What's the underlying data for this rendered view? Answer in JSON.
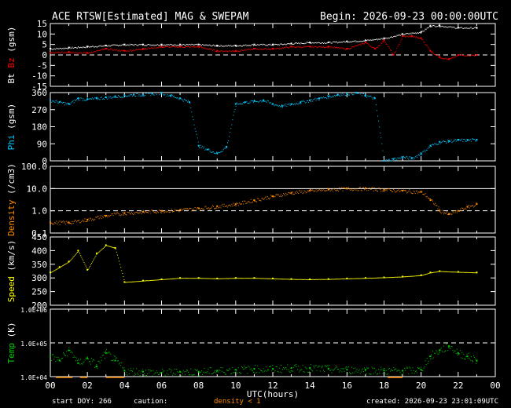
{
  "header": {
    "title": "ACE RTSW[Estimated] MAG & SWEPAM",
    "begin": "Begin: 2026-09-23 00:00:00UTC"
  },
  "footer": {
    "start_doy": "start DOY: 266",
    "caution_label": "caution:",
    "caution_note": "density < 1",
    "created": "created: 2026-09-23 23:01:09UTC"
  },
  "colors": {
    "background": "#000000",
    "bt": "#ffffff",
    "bz": "#ff0000",
    "phi": "#00c8ff",
    "density": "#ff8c00",
    "speed": "#ffff00",
    "temp": "#00c800"
  },
  "chart_data": [
    {
      "type": "scatter",
      "panel": "mag",
      "ylabel_parts": [
        "Bt",
        "Bz",
        "(gsm)"
      ],
      "yticks": [
        "15",
        "10",
        "5",
        "0",
        "-5",
        "-10",
        "-15"
      ],
      "ylim": [
        -15,
        15
      ],
      "dashed_at": 0,
      "series": [
        {
          "name": "Bt",
          "x": [
            0,
            1,
            2,
            3,
            4,
            5,
            6,
            7,
            8,
            9,
            10,
            11,
            12,
            13,
            14,
            15,
            16,
            17,
            18,
            19,
            20,
            20.5,
            21,
            22,
            23
          ],
          "y": [
            3,
            3.5,
            4,
            4.5,
            5,
            5,
            5,
            5,
            5,
            4.5,
            4.5,
            5,
            5,
            5.5,
            6,
            6,
            6.5,
            7,
            8,
            10,
            11,
            14,
            14,
            13,
            13
          ]
        },
        {
          "name": "Bz",
          "x": [
            0,
            1,
            2,
            3,
            4,
            5,
            6,
            7,
            8,
            9,
            10,
            11,
            12,
            13,
            14,
            15,
            16,
            17,
            17.5,
            18,
            18.5,
            19,
            19.5,
            20,
            20.5,
            21,
            21.5,
            22,
            23
          ],
          "y": [
            1,
            1.5,
            1,
            3,
            2,
            3,
            4,
            4,
            4,
            2,
            2,
            3,
            3,
            4,
            4,
            4,
            3,
            6,
            3,
            7,
            0,
            9,
            9,
            8,
            2,
            -1,
            -2,
            0,
            0
          ]
        }
      ]
    },
    {
      "type": "scatter",
      "panel": "phi",
      "ylabel": "Phi (gsm)",
      "yticks": [
        "360",
        "270",
        "180",
        "90",
        "0"
      ],
      "ylim": [
        0,
        360
      ],
      "series": [
        {
          "name": "Phi",
          "x": [
            0,
            0.5,
            1,
            1.5,
            2,
            2.5,
            3,
            3.5,
            4,
            4.5,
            5,
            5.5,
            6,
            6.5,
            7,
            7.5,
            8,
            8.5,
            9,
            9.5,
            10,
            10.5,
            11,
            11.5,
            12,
            12.5,
            13,
            13.5,
            14,
            14.5,
            15,
            15.5,
            16,
            16.5,
            17,
            17.5,
            18,
            18.5,
            19,
            19.5,
            20,
            20.5,
            21,
            21.5,
            22,
            22.5,
            23
          ],
          "y": [
            320,
            310,
            300,
            330,
            325,
            330,
            335,
            340,
            345,
            350,
            350,
            355,
            360,
            345,
            330,
            310,
            80,
            60,
            40,
            75,
            300,
            310,
            315,
            320,
            300,
            290,
            300,
            310,
            320,
            330,
            340,
            350,
            355,
            360,
            345,
            330,
            0,
            10,
            20,
            15,
            40,
            80,
            100,
            105,
            110,
            110,
            112
          ]
        }
      ]
    },
    {
      "type": "scatter",
      "panel": "density",
      "ylabel": "Density (/cm3)",
      "yticks": [
        "100.0",
        "10.0",
        "1.0",
        "0.1"
      ],
      "ylim": [
        0.1,
        100
      ],
      "log": true,
      "dashed_at": 1,
      "series": [
        {
          "name": "Density",
          "x": [
            0,
            1,
            2,
            3,
            4,
            5,
            6,
            7,
            8,
            9,
            10,
            11,
            12,
            13,
            14,
            15,
            16,
            17,
            18,
            19,
            20,
            20.5,
            21,
            21.5,
            22,
            22.5,
            23
          ],
          "y": [
            0.3,
            0.3,
            0.4,
            0.6,
            0.8,
            0.9,
            1.0,
            1.1,
            1.3,
            1.6,
            2.0,
            3.0,
            4.5,
            6.5,
            8.0,
            9.0,
            10.0,
            10.0,
            9.0,
            8.0,
            7.0,
            3.0,
            1.0,
            0.7,
            1.0,
            1.5,
            2.0
          ]
        }
      ]
    },
    {
      "type": "scatter",
      "panel": "speed",
      "ylabel": "Speed (km/s)",
      "yticks": [
        "450",
        "400",
        "350",
        "300",
        "250",
        "200"
      ],
      "ylim": [
        200,
        450
      ],
      "series": [
        {
          "name": "Speed",
          "x": [
            0,
            0.5,
            1,
            1.5,
            2,
            2.5,
            3,
            3.5,
            4,
            5,
            6,
            7,
            8,
            9,
            10,
            11,
            12,
            13,
            14,
            15,
            16,
            17,
            18,
            19,
            20,
            20.5,
            21,
            22,
            23
          ],
          "y": [
            320,
            340,
            360,
            400,
            330,
            390,
            420,
            410,
            285,
            290,
            295,
            300,
            300,
            298,
            300,
            300,
            298,
            296,
            295,
            296,
            298,
            300,
            302,
            305,
            310,
            320,
            325,
            322,
            320
          ]
        }
      ]
    },
    {
      "type": "scatter",
      "panel": "temp",
      "ylabel": "Temp (K)",
      "yticks": [
        "1.0E+06",
        "1.0E+05",
        "1.0E+04"
      ],
      "ylim": [
        10000,
        1000000
      ],
      "log": true,
      "dashed_at": 100000,
      "series": [
        {
          "name": "Temp",
          "x": [
            0,
            0.5,
            1,
            1.5,
            2,
            2.5,
            3,
            3.5,
            4,
            5,
            6,
            7,
            8,
            9,
            10,
            11,
            12,
            13,
            14,
            15,
            16,
            17,
            18,
            19,
            20,
            20.5,
            21,
            21.5,
            22,
            22.5,
            23
          ],
          "y": [
            40000,
            30000,
            60000,
            25000,
            35000,
            20000,
            50000,
            30000,
            15000,
            14000,
            13000,
            14000,
            14000,
            15000,
            16000,
            17000,
            17000,
            18000,
            18000,
            17000,
            16000,
            16000,
            15000,
            15000,
            16000,
            40000,
            60000,
            80000,
            50000,
            40000,
            30000
          ]
        }
      ]
    },
    {
      "type": "axis",
      "xlabel": "UTC(hours)",
      "xticks": [
        "00",
        "02",
        "04",
        "06",
        "08",
        "10",
        "12",
        "14",
        "16",
        "18",
        "20",
        "22",
        "00"
      ],
      "xlim": [
        0,
        24
      ]
    }
  ]
}
